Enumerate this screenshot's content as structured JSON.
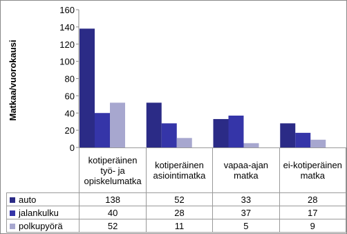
{
  "chart_data": {
    "type": "bar",
    "y_label": "Matkaa/vuorokausi",
    "categories": [
      "kotiperäinen työ- ja opiskelumatka",
      "kotiperäinen asiointimatka",
      "vapaa-ajan matka",
      "ei-kotiperäinen matka"
    ],
    "series": [
      {
        "name": "auto",
        "color": "#2b2b86",
        "values": [
          138,
          52,
          33,
          28
        ]
      },
      {
        "name": "jalankulku",
        "color": "#3535a8",
        "values": [
          40,
          28,
          37,
          17
        ]
      },
      {
        "name": "polkupyörä",
        "color": "#a7a7cf",
        "values": [
          52,
          11,
          5,
          9
        ]
      }
    ],
    "ylim": [
      0,
      160
    ],
    "yticks": [
      0,
      20,
      40,
      60,
      80,
      100,
      120,
      140,
      160
    ]
  }
}
